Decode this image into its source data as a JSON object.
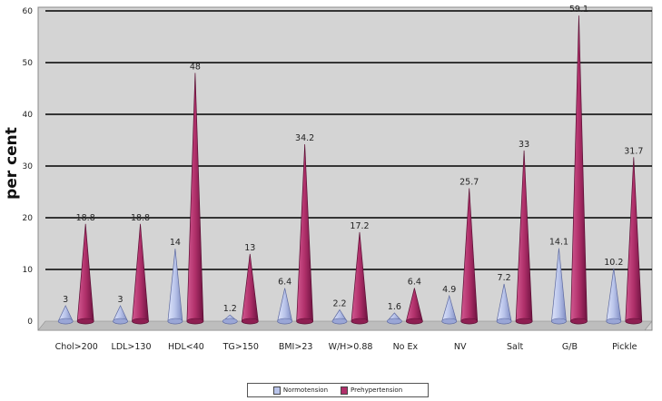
{
  "chart_data": {
    "type": "bar",
    "title": "",
    "xlabel": "",
    "ylabel": "per cent",
    "ylim": [
      0,
      60
    ],
    "yticks": [
      0,
      10,
      20,
      30,
      40,
      50,
      60
    ],
    "grid": true,
    "legend_position": "bottom",
    "categories": [
      "Chol>200",
      "LDL>130",
      "HDL<40",
      "TG>150",
      "BMI>23",
      "W/H>0.88",
      "No Ex",
      "NV",
      "Salt",
      "G/B",
      "Pickle"
    ],
    "series": [
      {
        "name": "Normotension",
        "color": "#b9c4ea",
        "values": [
          3,
          3,
          14,
          1.2,
          6.4,
          2.2,
          1.6,
          4.9,
          7.2,
          14.1,
          10.2
        ],
        "labels": [
          "3",
          "3",
          "14",
          "1.2",
          "6.4",
          "2.2",
          "1.6",
          "4.9",
          "7.2",
          "14.1",
          "10.2"
        ]
      },
      {
        "name": "Prehypertension",
        "color": "#b0306a",
        "values": [
          18.8,
          18.8,
          48,
          13,
          34.2,
          17.2,
          6.4,
          25.7,
          33,
          59.1,
          31.7
        ],
        "labels": [
          "18.8",
          "18.8",
          "48",
          "13",
          "34.2",
          "17.2",
          "6.4",
          "25.7",
          "33",
          "59.1",
          "31.7"
        ]
      }
    ]
  }
}
